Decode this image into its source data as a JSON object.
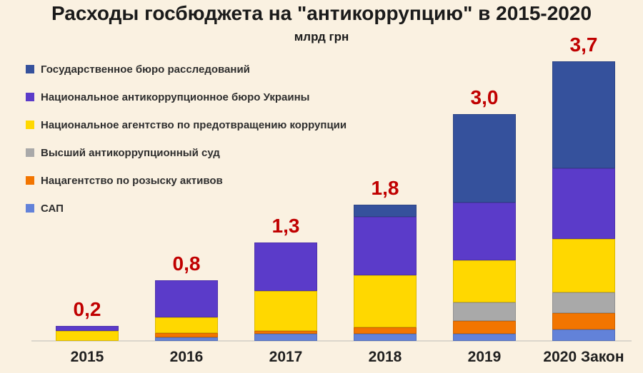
{
  "title": "Расходы госбюджета на \"антикоррупцию\" в 2015-2020",
  "subtitle": "млрд грн",
  "background_color": "#FAF1E1",
  "total_label_color": "#C00000",
  "legend": {
    "items": [
      {
        "key": "gbr",
        "label": "Государственное бюро расследований",
        "color": "#35519C"
      },
      {
        "key": "nabu",
        "label": "Национальное антикоррупционное бюро Украины",
        "color": "#5B3BC9"
      },
      {
        "key": "napc",
        "label": "Национальное агентство по предотвращению коррупции",
        "color": "#FFD800"
      },
      {
        "key": "vaks",
        "label": "Высший антикоррупционный суд",
        "color": "#A9A9A9"
      },
      {
        "key": "arma",
        "label": "Нацагентство по розыску активов",
        "color": "#F27500"
      },
      {
        "key": "sap",
        "label": "САП",
        "color": "#6282D9"
      }
    ]
  },
  "chart_data": {
    "type": "bar",
    "stacked": true,
    "title": "Расходы госбюджета на \"антикоррупцию\" в 2015-2020",
    "ylabel": "млрд грн",
    "xlabel": "",
    "categories": [
      "2015",
      "2016",
      "2017",
      "2018",
      "2019",
      "2020 Закон"
    ],
    "totals": [
      0.2,
      0.8,
      1.3,
      1.8,
      3.0,
      3.7
    ],
    "total_labels": [
      "0,2",
      "0,8",
      "1,3",
      "1,8",
      "3,0",
      "3,7"
    ],
    "series": [
      {
        "key": "gbr",
        "name": "Государственное бюро расследований",
        "color": "#35519C",
        "values": [
          0,
          0,
          0,
          0.16,
          1.17,
          1.42
        ]
      },
      {
        "key": "nabu",
        "name": "Национальное антикоррупционное бюро Украины",
        "color": "#5B3BC9",
        "values": [
          0.07,
          0.49,
          0.64,
          0.77,
          0.76,
          0.93
        ]
      },
      {
        "key": "napc",
        "name": "Национальное агентство по предотвращению коррупции",
        "color": "#FFD800",
        "values": [
          0.13,
          0.21,
          0.53,
          0.69,
          0.56,
          0.71
        ]
      },
      {
        "key": "vaks",
        "name": "Высший антикоррупционный суд",
        "color": "#A9A9A9",
        "values": [
          0,
          0,
          0,
          0,
          0.25,
          0.27
        ]
      },
      {
        "key": "arma",
        "name": "Нацагентство по розыску активов",
        "color": "#F27500",
        "values": [
          0,
          0.05,
          0.04,
          0.09,
          0.17,
          0.22
        ]
      },
      {
        "key": "sap",
        "name": "САП",
        "color": "#6282D9",
        "values": [
          0,
          0.05,
          0.09,
          0.09,
          0.09,
          0.15
        ]
      }
    ],
    "stack_order_bottom_to_top": [
      "sap",
      "arma",
      "vaks",
      "napc",
      "nabu",
      "gbr"
    ],
    "ylim": [
      0,
      3.9
    ],
    "grid": false,
    "legend_position": "upper-left"
  }
}
